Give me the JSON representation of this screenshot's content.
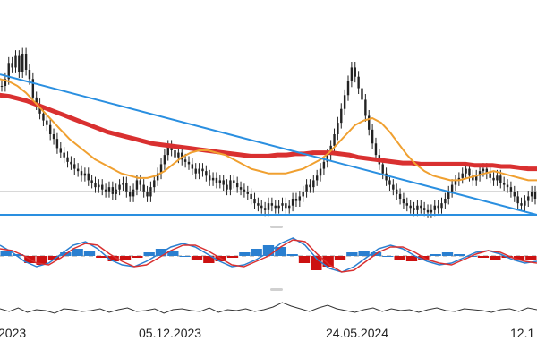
{
  "chart_data": {
    "type": "line",
    "x_tick_labels": [
      "2023",
      "05.12.2023",
      "24.05.2024",
      "12.1"
    ],
    "colors": {
      "price": "#222222",
      "fast_ma": "#f0a030",
      "slow_ma": "#d93030",
      "trendline": "#2a8fe0",
      "baseline": "#666666",
      "macd_hist_pos": "#2a7fd0",
      "macd_hist_neg": "#cc1111",
      "signal_red": "#d93030",
      "signal_blue": "#2a7fd0",
      "bottom_line": "#333333"
    },
    "main_panel": {
      "price": [
        112,
        118,
        132,
        128,
        138,
        124,
        140,
        126,
        118,
        102,
        96,
        88,
        82,
        78,
        70,
        66,
        58,
        54,
        50,
        46,
        44,
        40,
        38,
        34,
        36,
        30,
        28,
        24,
        26,
        22,
        20,
        24,
        18,
        22,
        26,
        28,
        20,
        16,
        22,
        30,
        26,
        20,
        16,
        24,
        30,
        36,
        44,
        52,
        60,
        56,
        50,
        54,
        48,
        46,
        44,
        40,
        36,
        40,
        38,
        34,
        30,
        32,
        28,
        30,
        26,
        22,
        30,
        28,
        24,
        22,
        20,
        18,
        14,
        10,
        8,
        6,
        4,
        10,
        8,
        6,
        8,
        10,
        6,
        8,
        14,
        12,
        16,
        20,
        26,
        24,
        30,
        34,
        40,
        46,
        52,
        60,
        70,
        80,
        92,
        104,
        116,
        128,
        120,
        110,
        100,
        86,
        74,
        62,
        52,
        44,
        36,
        30,
        26,
        22,
        18,
        14,
        10,
        8,
        6,
        4,
        8,
        6,
        4,
        2,
        4,
        8,
        6,
        10,
        14,
        20,
        26,
        30,
        32,
        36,
        40,
        34,
        30,
        34,
        38,
        40,
        36,
        32,
        30,
        34,
        28,
        26,
        24,
        20,
        16,
        10,
        8,
        12,
        16,
        20,
        14
      ],
      "fast_ma": [
        118,
        116,
        112,
        106,
        98,
        90,
        82,
        74,
        66,
        60,
        54,
        48,
        44,
        40,
        36,
        34,
        32,
        32,
        34,
        38,
        44,
        50,
        54,
        56,
        56,
        54,
        52,
        48,
        44,
        40,
        38,
        36,
        36,
        36,
        38,
        40,
        44,
        48,
        54,
        62,
        70,
        78,
        82,
        84,
        80,
        72,
        62,
        52,
        44,
        38,
        34,
        32,
        30,
        30,
        32,
        34,
        36,
        38,
        36,
        34,
        32,
        30,
        30
      ],
      "slow_ma": [
        104,
        103,
        101,
        99,
        96,
        93,
        90,
        87,
        84,
        81,
        78,
        75,
        72,
        70,
        68,
        66,
        64,
        62,
        61,
        60,
        59,
        58,
        57,
        56,
        55,
        54,
        53,
        52,
        51,
        51,
        51,
        52,
        52,
        53,
        53,
        54,
        54,
        54,
        53,
        52,
        50,
        49,
        48,
        47,
        46,
        45,
        45,
        44,
        44,
        44,
        44,
        44,
        44,
        43,
        43,
        43,
        42,
        42,
        41,
        40,
        40
      ],
      "upper_trendline": [
        [
          0,
          122
        ],
        [
          1,
          0
        ]
      ],
      "lower_trendline": [
        [
          0,
          0
        ],
        [
          1,
          0
        ]
      ],
      "baseline": 20
    },
    "macd_panel": {
      "macd": [
        0.6,
        0.2,
        -0.3,
        -0.6,
        -0.4,
        0.1,
        0.6,
        0.8,
        0.4,
        -0.2,
        -0.5,
        -0.6,
        -0.3,
        0.1,
        0.5,
        0.7,
        0.5,
        0.1,
        -0.3,
        -0.6,
        -0.5,
        -0.2,
        0.2,
        0.7,
        1.0,
        0.6,
        -0.2,
        -0.7,
        -0.9,
        -0.6,
        -0.1,
        0.4,
        0.6,
        0.4,
        0.0,
        -0.3,
        -0.5,
        -0.4,
        -0.1,
        0.2,
        0.3,
        0.1,
        -0.2,
        -0.4,
        -0.3
      ],
      "signal": [
        0.4,
        0.3,
        0.0,
        -0.4,
        -0.5,
        -0.1,
        0.4,
        0.7,
        0.6,
        0.1,
        -0.3,
        -0.6,
        -0.5,
        -0.1,
        0.3,
        0.6,
        0.6,
        0.3,
        -0.1,
        -0.5,
        -0.6,
        -0.3,
        0.0,
        0.5,
        0.9,
        0.8,
        0.1,
        -0.5,
        -0.9,
        -0.8,
        -0.3,
        0.2,
        0.5,
        0.5,
        0.2,
        -0.2,
        -0.4,
        -0.5,
        -0.2,
        0.1,
        0.3,
        0.2,
        -0.1,
        -0.3,
        -0.4
      ],
      "histogram": [
        0.3,
        0.1,
        -0.4,
        -0.5,
        -0.2,
        0.2,
        0.4,
        0.3,
        -0.1,
        -0.3,
        -0.2,
        -0.1,
        0.2,
        0.4,
        0.3,
        0.0,
        -0.2,
        -0.4,
        -0.3,
        -0.1,
        0.2,
        0.4,
        0.6,
        0.5,
        0.1,
        -0.4,
        -0.8,
        -0.6,
        -0.2,
        0.2,
        0.3,
        0.2,
        0.0,
        -0.2,
        -0.3,
        -0.2,
        0.1,
        0.2,
        0.1,
        0.0,
        -0.1,
        -0.2,
        -0.1,
        -0.2,
        -0.2
      ]
    },
    "bottom_panel": {
      "values": [
        0.2,
        -0.1,
        0.3,
        -0.2,
        0.1,
        0.0,
        -0.3,
        0.2,
        0.1,
        -0.1,
        0.0,
        0.2,
        -0.2,
        0.1,
        0.3,
        -0.1,
        0.0,
        0.2,
        -0.3,
        0.1,
        0.2,
        0.0,
        -0.1,
        0.3,
        -0.2,
        0.1,
        0.0,
        0.2,
        -0.1,
        0.1,
        0.4,
        0.9,
        0.5,
        0.2,
        -0.1,
        0.3,
        0.6,
        0.2,
        0.0,
        -0.2,
        0.1,
        0.3,
        -0.1,
        0.2,
        0.0,
        0.1,
        -0.2,
        0.1,
        0.3,
        0.0,
        -0.1,
        0.2,
        0.1,
        0.0,
        -0.2,
        0.1,
        0.2,
        -0.1,
        0.3,
        0.1
      ]
    }
  }
}
